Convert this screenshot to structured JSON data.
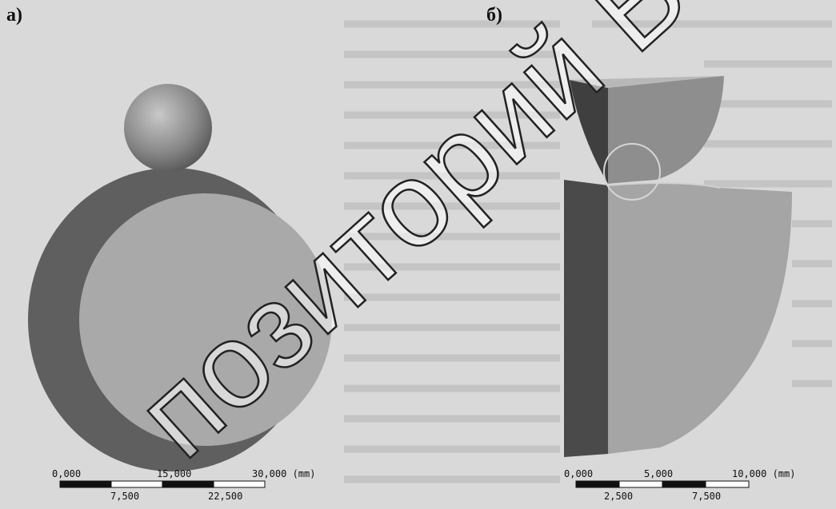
{
  "panels": [
    {
      "label": "а)",
      "scale": {
        "top_labels": [
          "0,000",
          "15,000",
          "30,000 (mm)"
        ],
        "bottom_labels": [
          "7,500",
          "22,500"
        ]
      }
    },
    {
      "label": "б)",
      "scale": {
        "top_labels": [
          "0,000",
          "5,000",
          "10,000 (mm)"
        ],
        "bottom_labels": [
          "2,500",
          "7,500"
        ]
      }
    }
  ],
  "watermark": "позиторий Б"
}
